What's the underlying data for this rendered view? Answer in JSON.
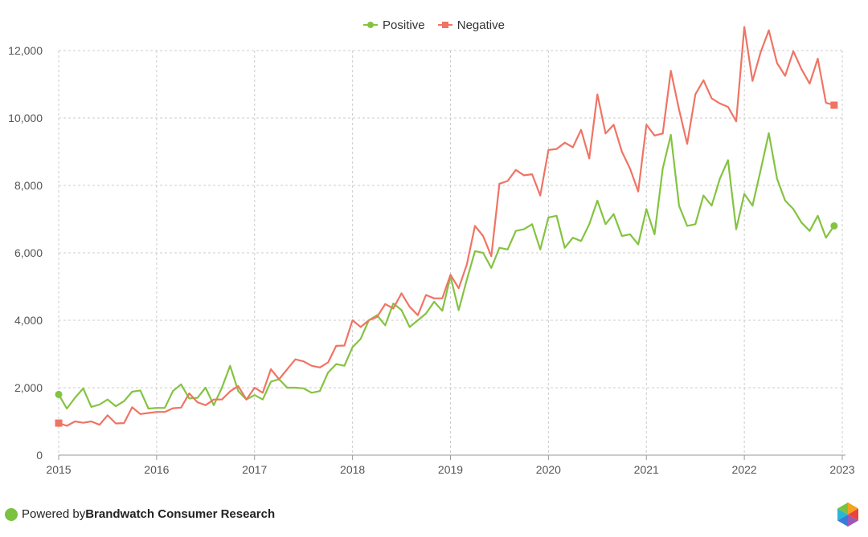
{
  "legend": {
    "positive": "Positive",
    "negative": "Negative"
  },
  "footer": {
    "powered_by": "Powered by ",
    "brand": "Brandwatch Consumer Research"
  },
  "colors": {
    "positive": "#84c341",
    "negative": "#ef7464",
    "grid": "#cccccc",
    "axis_text": "#555555"
  },
  "chart_data": {
    "type": "line",
    "x_start": "2015-01",
    "x_ticks": [
      "2015",
      "2016",
      "2017",
      "2018",
      "2019",
      "2020",
      "2021",
      "2022",
      "2023"
    ],
    "y_ticks": [
      "0",
      "2,000",
      "4,000",
      "6,000",
      "8,000",
      "10,000",
      "12,000"
    ],
    "ylim": [
      0,
      12000
    ],
    "grid": true,
    "legend_position": "top-center",
    "series": [
      {
        "name": "Positive",
        "marker": "circle",
        "values": [
          1800,
          1380,
          1700,
          1980,
          1430,
          1500,
          1650,
          1450,
          1600,
          1880,
          1920,
          1380,
          1400,
          1400,
          1900,
          2100,
          1680,
          1700,
          2000,
          1480,
          2000,
          2650,
          1900,
          1650,
          1780,
          1650,
          2180,
          2250,
          2000,
          2000,
          1980,
          1850,
          1900,
          2450,
          2700,
          2650,
          3200,
          3450,
          4000,
          4150,
          3850,
          4500,
          4300,
          3800,
          4000,
          4200,
          4550,
          4280,
          5300,
          4300,
          5200,
          6050,
          6000,
          5550,
          6150,
          6100,
          6650,
          6700,
          6850,
          6100,
          7050,
          7100,
          6150,
          6450,
          6350,
          6850,
          7550,
          6850,
          7150,
          6500,
          6550,
          6250,
          7300,
          6550,
          8500,
          9500,
          7400,
          6800,
          6850,
          7700,
          7400,
          8200,
          8750,
          6700,
          7750,
          7400,
          8450,
          9550,
          8200,
          7550,
          7300,
          6900,
          6650,
          7100,
          6450,
          6800
        ]
      },
      {
        "name": "Negative",
        "marker": "square",
        "values": [
          950,
          870,
          1000,
          960,
          1000,
          900,
          1180,
          940,
          950,
          1420,
          1220,
          1250,
          1280,
          1280,
          1390,
          1410,
          1830,
          1570,
          1480,
          1650,
          1650,
          1890,
          2050,
          1650,
          2000,
          1850,
          2550,
          2250,
          2550,
          2840,
          2780,
          2650,
          2600,
          2750,
          3240,
          3250,
          4000,
          3800,
          4000,
          4100,
          4480,
          4350,
          4800,
          4400,
          4150,
          4750,
          4650,
          4650,
          5350,
          4950,
          5650,
          6800,
          6500,
          5900,
          8050,
          8130,
          8460,
          8300,
          8330,
          7700,
          9050,
          9080,
          9270,
          9130,
          9650,
          8800,
          10700,
          9540,
          9800,
          9000,
          8500,
          7820,
          9800,
          9480,
          9540,
          11400,
          10250,
          9230,
          10700,
          11120,
          10580,
          10430,
          10330,
          9900,
          12700,
          11100,
          11950,
          12600,
          11630,
          11250,
          11980,
          11450,
          11020,
          11760,
          10450,
          10380
        ]
      }
    ]
  }
}
